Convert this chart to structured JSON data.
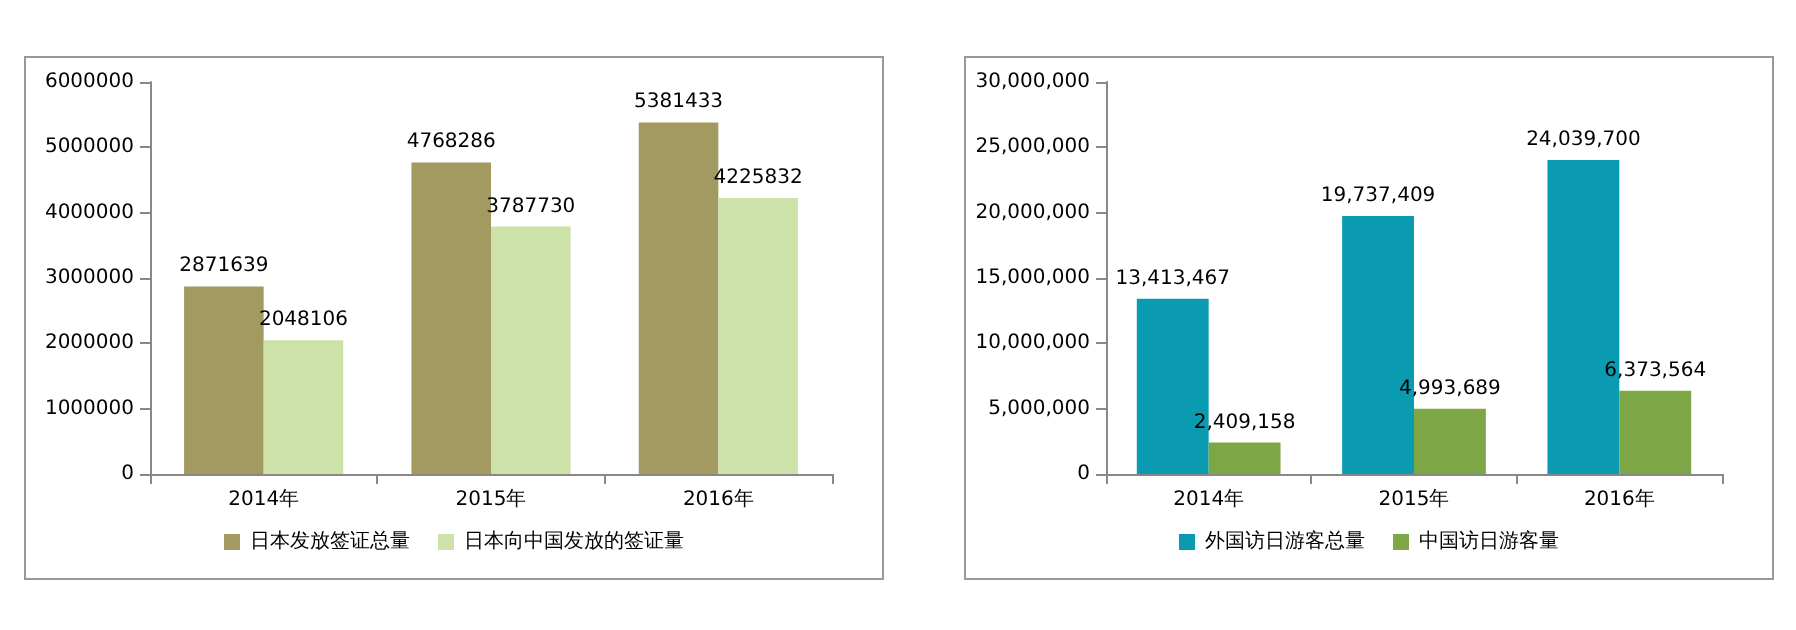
{
  "chart_data": [
    {
      "type": "bar",
      "categories": [
        "2014年",
        "2015年",
        "2016年"
      ],
      "series": [
        {
          "name": "日本发放签证总量",
          "color": "#a39a62",
          "values": [
            2871639,
            4768286,
            5381433
          ]
        },
        {
          "name": "日本向中国发放的签证量",
          "color": "#cce2a9",
          "values": [
            2048106,
            3787730,
            4225832
          ]
        }
      ],
      "ylim": [
        0,
        6000000
      ],
      "yticks": [
        0,
        1000000,
        2000000,
        3000000,
        4000000,
        5000000,
        6000000
      ],
      "grid": false,
      "legend": "bottom",
      "data_labels": true
    },
    {
      "type": "bar",
      "categories": [
        "2014年",
        "2015年",
        "2016年"
      ],
      "series": [
        {
          "name": "外国访日游客总量",
          "color": "#0a9bb0",
          "values": [
            13413467,
            19737409,
            24039700
          ],
          "value_labels": [
            "13,413,467",
            "19,737,409",
            "24,039,700"
          ]
        },
        {
          "name": "中国访日游客量",
          "color": "#7da746",
          "values": [
            2409158,
            4993689,
            6373564
          ],
          "value_labels": [
            "2,409,158",
            "4,993,689",
            "6,373,564"
          ]
        }
      ],
      "ylim": [
        0,
        30000000
      ],
      "yticks": [
        0,
        {
          "value": 5000000,
          "label": "5,000,000"
        },
        {
          "value": 10000000,
          "label": "10,000,000"
        },
        {
          "value": 15000000,
          "label": "15,000,000"
        },
        {
          "value": 20000000,
          "label": "20,000,000"
        },
        {
          "value": 25000000,
          "label": "25,000,000"
        },
        {
          "value": 30000000,
          "label": "30,000,000"
        }
      ],
      "grid": false,
      "legend": "bottom"
    }
  ]
}
